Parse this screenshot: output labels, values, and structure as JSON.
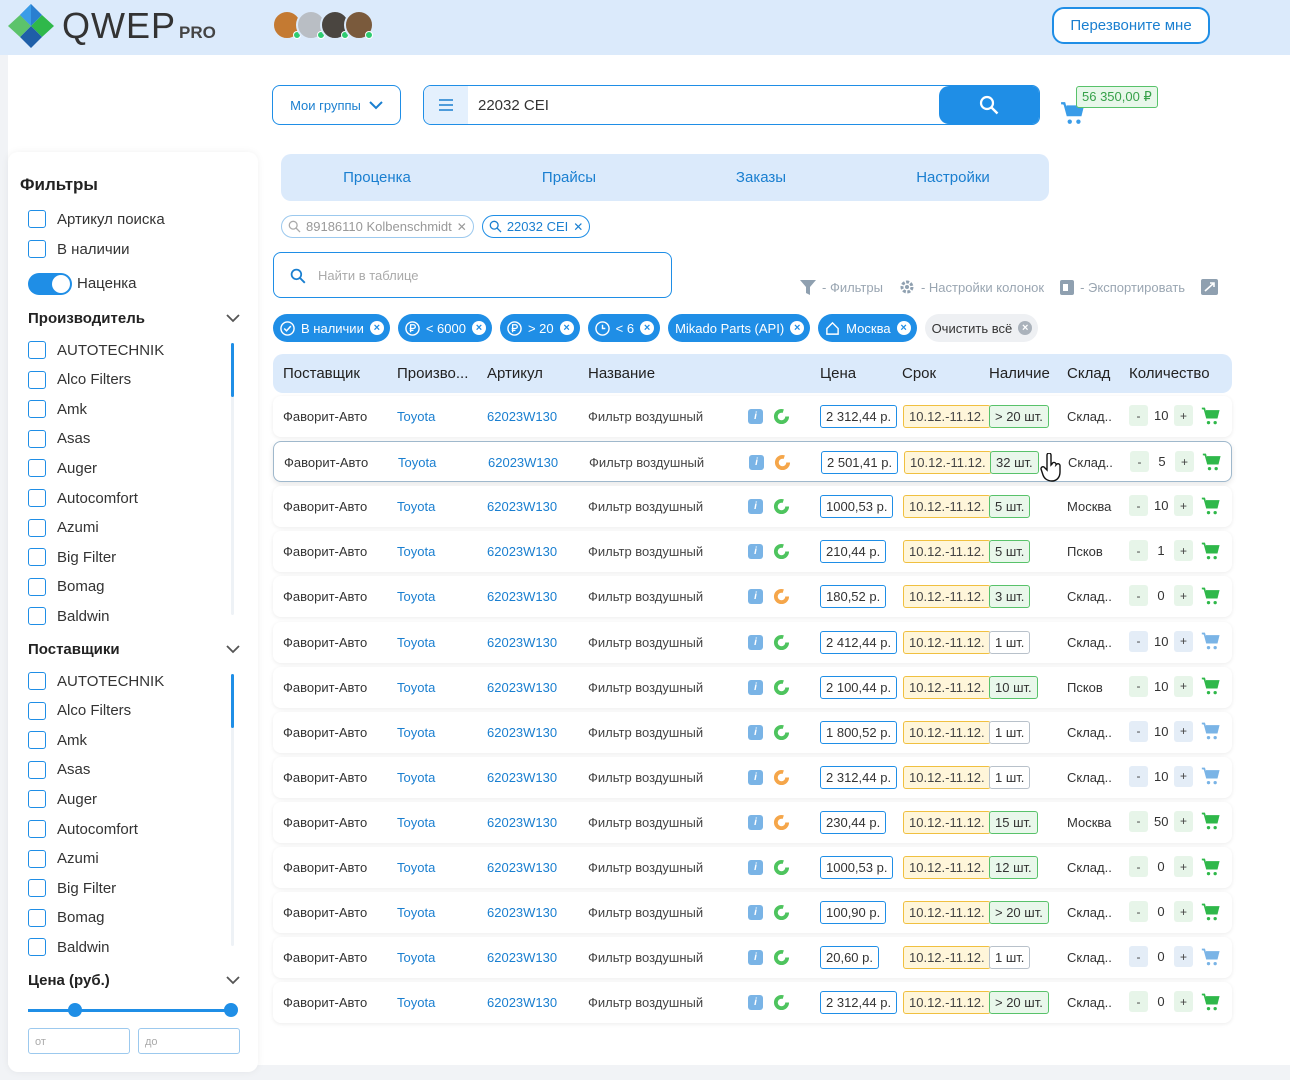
{
  "header": {
    "logo_text": "QWEP",
    "logo_sub": "PRO",
    "callback_label": "Перезвоните мне"
  },
  "search": {
    "groups_label": "Мои группы",
    "query": "22032 CEI",
    "cart_total": "56 350,00 ₽"
  },
  "tabs": [
    "Проценка",
    "Прайсы",
    "Заказы",
    "Настройки"
  ],
  "recent_searches": [
    {
      "label": "89186110 Kolbenschmidt",
      "active": false
    },
    {
      "label": "22032 CEI",
      "active": true
    }
  ],
  "table_search_placeholder": "Найти в таблице",
  "tools": {
    "filters": "- Фильтры",
    "columns": "- Настройки колонок",
    "export": "- Экспортировать"
  },
  "active_filters": [
    "В наличии",
    "< 6000",
    "> 20",
    "< 6",
    "Mikado Parts (API)",
    "Москва"
  ],
  "clear_all": "Очистить всё",
  "sidebar": {
    "title": "Фильтры",
    "checks": [
      "Артикул поиска",
      "В наличии"
    ],
    "markup_label": "Наценка",
    "manufacturer_title": "Производитель",
    "suppliers_title": "Поставщики",
    "brands": [
      "AUTOTECHNIK",
      "Alco Filters",
      "Amk",
      "Asas",
      "Auger",
      "Autocomfort",
      "Azumi",
      "Big Filter",
      "Bomag",
      "Baldwin"
    ],
    "price_title": "Цена (руб.)",
    "price_from": "от",
    "price_to": "до"
  },
  "columns": [
    "Поставщик",
    "Произво...",
    "Артикул",
    "Название",
    "Цена",
    "Срок",
    "Наличие",
    "Склад",
    "Количество"
  ],
  "rows": [
    {
      "supplier": "Фаворит-Авто",
      "mfr": "Toyota",
      "art": "62023W130",
      "name": "Фильтр воздушный",
      "price": "2 312,44 р.",
      "term": "10.12.-11.12.",
      "avail": "> 20 шт.",
      "wh": "Склад..",
      "qty": "10",
      "ring": "#4ec45e",
      "cart": "#2fb84a"
    },
    {
      "supplier": "Фаворит-Авто",
      "mfr": "Toyota",
      "art": "62023W130",
      "name": "Фильтр воздушный",
      "price": "2 501,41 р.",
      "term": "10.12.-11.12.",
      "avail": "32 шт.",
      "wh": "Склад..",
      "qty": "5",
      "ring": "#f5a64a",
      "cart": "#2fb84a"
    },
    {
      "supplier": "Фаворит-Авто",
      "mfr": "Toyota",
      "art": "62023W130",
      "name": "Фильтр воздушный",
      "price": "1000,53 р.",
      "term": "10.12.-11.12.",
      "avail": "5 шт.",
      "wh": "Москва",
      "qty": "10",
      "ring": "#4ec45e",
      "cart": "#2fb84a"
    },
    {
      "supplier": "Фаворит-Авто",
      "mfr": "Toyota",
      "art": "62023W130",
      "name": "Фильтр воздушный",
      "price": "210,44 р.",
      "term": "10.12.-11.12.",
      "avail": "5 шт.",
      "wh": "Псков",
      "qty": "1",
      "ring": "#4ec45e",
      "cart": "#2fb84a"
    },
    {
      "supplier": "Фаворит-Авто",
      "mfr": "Toyota",
      "art": "62023W130",
      "name": "Фильтр воздушный",
      "price": "180,52 р.",
      "term": "10.12.-11.12.",
      "avail": "3 шт.",
      "wh": "Склад..",
      "qty": "0",
      "ring": "#f5a64a",
      "cart": "#2fb84a"
    },
    {
      "supplier": "Фаворит-Авто",
      "mfr": "Toyota",
      "art": "62023W130",
      "name": "Фильтр воздушный",
      "price": "2 412,44 р.",
      "term": "10.12.-11.12.",
      "avail": "1 шт.",
      "wh": "Склад..",
      "qty": "10",
      "ring": "#4ec45e",
      "cart": "#7ab4e6"
    },
    {
      "supplier": "Фаворит-Авто",
      "mfr": "Toyota",
      "art": "62023W130",
      "name": "Фильтр воздушный",
      "price": "2 100,44 р.",
      "term": "10.12.-11.12.",
      "avail": "10 шт.",
      "wh": "Псков",
      "qty": "10",
      "ring": "#4ec45e",
      "cart": "#2fb84a"
    },
    {
      "supplier": "Фаворит-Авто",
      "mfr": "Toyota",
      "art": "62023W130",
      "name": "Фильтр воздушный",
      "price": "1 800,52 р.",
      "term": "10.12.-11.12.",
      "avail": "1 шт.",
      "wh": "Склад..",
      "qty": "10",
      "ring": "#4ec45e",
      "cart": "#7ab4e6"
    },
    {
      "supplier": "Фаворит-Авто",
      "mfr": "Toyota",
      "art": "62023W130",
      "name": "Фильтр воздушный",
      "price": "2 312,44 р.",
      "term": "10.12.-11.12.",
      "avail": "1 шт.",
      "wh": "Склад..",
      "qty": "10",
      "ring": "#f5a64a",
      "cart": "#7ab4e6"
    },
    {
      "supplier": "Фаворит-Авто",
      "mfr": "Toyota",
      "art": "62023W130",
      "name": "Фильтр воздушный",
      "price": "230,44 р.",
      "term": "10.12.-11.12.",
      "avail": "15 шт.",
      "wh": "Москва",
      "qty": "50",
      "ring": "#f5a64a",
      "cart": "#2fb84a"
    },
    {
      "supplier": "Фаворит-Авто",
      "mfr": "Toyota",
      "art": "62023W130",
      "name": "Фильтр воздушный",
      "price": "1000,53 р.",
      "term": "10.12.-11.12.",
      "avail": "12 шт.",
      "wh": "Склад..",
      "qty": "0",
      "ring": "#4ec45e",
      "cart": "#2fb84a"
    },
    {
      "supplier": "Фаворит-Авто",
      "mfr": "Toyota",
      "art": "62023W130",
      "name": "Фильтр воздушный",
      "price": "100,90 р.",
      "term": "10.12.-11.12.",
      "avail": "> 20 шт.",
      "wh": "Склад..",
      "qty": "0",
      "ring": "#4ec45e",
      "cart": "#2fb84a"
    },
    {
      "supplier": "Фаворит-Авто",
      "mfr": "Toyota",
      "art": "62023W130",
      "name": "Фильтр воздушный",
      "price": "20,60 р.",
      "term": "10.12.-11.12.",
      "avail": "1 шт.",
      "wh": "Склад..",
      "qty": "0",
      "ring": "#4ec45e",
      "cart": "#7ab4e6"
    },
    {
      "supplier": "Фаворит-Авто",
      "mfr": "Toyota",
      "art": "62023W130",
      "name": "Фильтр воздушный",
      "price": "2 312,44 р.",
      "term": "10.12.-11.12.",
      "avail": "> 20 шт.",
      "wh": "Склад..",
      "qty": "0",
      "ring": "#4ec45e",
      "cart": "#2fb84a"
    }
  ],
  "colors": {
    "accent": "#1f8ee6",
    "header_bg": "#dbeafb",
    "green": "#2fb84a",
    "amber": "#f0c040"
  },
  "icons": [
    "search-icon",
    "menu-icon",
    "chevron-down-icon",
    "cart-icon",
    "filter-icon",
    "gear-icon",
    "export-icon",
    "expand-icon",
    "close-icon",
    "check-circle-icon",
    "ruble-icon",
    "clock-icon",
    "home-icon",
    "info-icon",
    "status-ring-icon",
    "hand-pointer-icon"
  ]
}
